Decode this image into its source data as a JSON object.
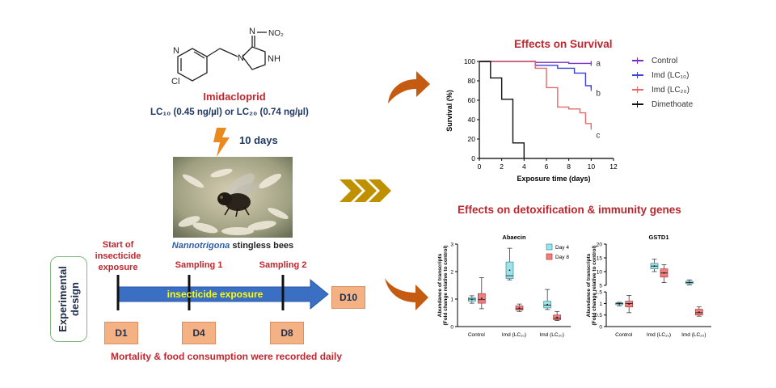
{
  "compound": {
    "label_no2": "NO₂",
    "label_n1": "N",
    "label_n2": "N",
    "label_n3": "N",
    "label_nh": "NH",
    "label_cl": "Cl",
    "name": "Imidacloprid",
    "lc10": "LC₁₀",
    "lc10_value": "(0.45 ng/µl)",
    "or": "or",
    "lc20": "LC₂₀",
    "lc20_value": "(0.74 ng/µl)",
    "duration": "10 days"
  },
  "bee": {
    "species": "Nannotrigona",
    "suffix": "stingless bees"
  },
  "design": {
    "title": "Experimental design",
    "start_label": "Start of insecticide exposure",
    "sampling1": "Sampling 1",
    "sampling2": "Sampling 2",
    "bar_label": "insecticide exposure",
    "days": [
      "D1",
      "D4",
      "D8",
      "D10"
    ],
    "note": "Mortality & food consumption were  recorded daily"
  },
  "survival": {
    "heading": "Effects on Survival",
    "legend": [
      {
        "name": "Control",
        "color": "#7b2fbf"
      },
      {
        "name": "Imd (LC₁₀)",
        "color": "#3a3fd6"
      },
      {
        "name": "Imd (LC₂₀)",
        "color": "#e8686a"
      },
      {
        "name": "Dimethoate",
        "color": "#111111"
      }
    ],
    "letters": [
      "a",
      "b",
      "c"
    ]
  },
  "genes": {
    "heading": "Effects on detoxification & immunity genes",
    "legend": [
      {
        "name": "Day 4",
        "color": "#9fe3ea"
      },
      {
        "name": "Day 8",
        "color": "#ef7f7f"
      }
    ]
  },
  "chart_data": [
    {
      "type": "line",
      "title": "",
      "xlabel": "Exposure time (days)",
      "ylabel": "Survival (%)",
      "xlim": [
        0,
        12
      ],
      "ylim": [
        0,
        100
      ],
      "xticks": [
        0,
        2,
        4,
        6,
        8,
        10,
        12
      ],
      "yticks": [
        0,
        20,
        40,
        60,
        80,
        100
      ],
      "step": true,
      "series": [
        {
          "name": "Control",
          "x": [
            0,
            5,
            8,
            10
          ],
          "y": [
            100,
            99,
            98,
            98
          ]
        },
        {
          "name": "Imd (LC₁₀)",
          "x": [
            0,
            5,
            7,
            8.5,
            9.5,
            10
          ],
          "y": [
            100,
            96,
            93,
            88,
            75,
            72
          ]
        },
        {
          "name": "Imd (LC₂₀)",
          "x": [
            0,
            5,
            6,
            7,
            8,
            9,
            9.5,
            10
          ],
          "y": [
            100,
            93,
            73,
            53,
            51,
            47,
            36,
            32
          ]
        },
        {
          "name": "Dimethoate",
          "x": [
            0,
            1,
            2,
            3,
            4
          ],
          "y": [
            100,
            83,
            61,
            16,
            0
          ]
        }
      ]
    },
    {
      "type": "box",
      "title": "Abaecin",
      "ylabel": "Abundance of transcripts (Fold change relative to control)",
      "ylim": [
        0,
        3
      ],
      "yticks": [
        0,
        1,
        2,
        3
      ],
      "categories": [
        "Control",
        "Imd (LC₁₀)",
        "Imd (LC₂₀)"
      ],
      "series": [
        {
          "name": "Day 4",
          "boxes": [
            {
              "min": 0.85,
              "q1": 0.92,
              "median": 1.0,
              "q3": 1.05,
              "max": 1.12
            },
            {
              "min": 1.7,
              "q1": 1.75,
              "median": 1.85,
              "q3": 2.35,
              "max": 2.85
            },
            {
              "min": 0.62,
              "q1": 0.68,
              "median": 0.78,
              "q3": 0.92,
              "max": 1.35
            }
          ]
        },
        {
          "name": "Day 8",
          "boxes": [
            {
              "min": 0.65,
              "q1": 0.85,
              "median": 0.98,
              "q3": 1.2,
              "max": 1.78
            },
            {
              "min": 0.55,
              "q1": 0.6,
              "median": 0.65,
              "q3": 0.75,
              "max": 0.82
            },
            {
              "min": 0.22,
              "q1": 0.25,
              "median": 0.3,
              "q3": 0.42,
              "max": 0.55
            }
          ]
        }
      ]
    },
    {
      "type": "box",
      "title": "GSTD1",
      "ylabel": "Abundance of transcripts (Fold change relative to control)",
      "ylim": [
        0,
        20
      ],
      "ybreak": [
        1.5,
        5
      ],
      "yticks": [
        0,
        0.5,
        1.0,
        1.5,
        5,
        10,
        15,
        20
      ],
      "categories": [
        "Control",
        "Imd (LC₁₀)",
        "Imd (LC₂₀)"
      ],
      "series": [
        {
          "name": "Day 4",
          "boxes": [
            {
              "min": 0.9,
              "q1": 0.95,
              "median": 1.0,
              "q3": 1.03,
              "max": 1.05
            },
            {
              "min": 10.0,
              "q1": 11.0,
              "median": 12.0,
              "q3": 13.0,
              "max": 14.5
            },
            {
              "min": 5.2,
              "q1": 5.6,
              "median": 6.0,
              "q3": 6.5,
              "max": 7.0
            }
          ]
        },
        {
          "name": "Day 8",
          "boxes": [
            {
              "min": 0.6,
              "q1": 0.85,
              "median": 1.0,
              "q3": 1.1,
              "max": 1.35
            },
            {
              "min": 6.0,
              "q1": 8.0,
              "median": 9.5,
              "q3": 11.0,
              "max": 12.5
            },
            {
              "min": 0.45,
              "q1": 0.5,
              "median": 0.6,
              "q3": 0.75,
              "max": 0.85
            }
          ]
        }
      ]
    }
  ]
}
